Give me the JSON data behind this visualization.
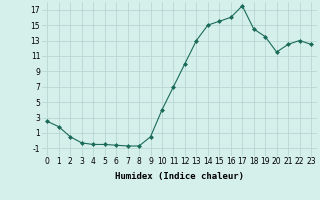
{
  "x": [
    0,
    1,
    2,
    3,
    4,
    5,
    6,
    7,
    8,
    9,
    10,
    11,
    12,
    13,
    14,
    15,
    16,
    17,
    18,
    19,
    20,
    21,
    22,
    23
  ],
  "y": [
    2.5,
    1.8,
    0.5,
    -0.3,
    -0.5,
    -0.5,
    -0.6,
    -0.7,
    -0.7,
    0.5,
    4.0,
    7.0,
    10.0,
    13.0,
    15.0,
    15.5,
    16.0,
    17.5,
    14.5,
    13.5,
    11.5,
    12.5,
    13.0,
    12.5
  ],
  "xlabel": "Humidex (Indice chaleur)",
  "xlim": [
    -0.5,
    23.5
  ],
  "ylim": [
    -2,
    18
  ],
  "yticks": [
    -1,
    1,
    3,
    5,
    7,
    9,
    11,
    13,
    15,
    17
  ],
  "line_color": "#1a6b5a",
  "marker": "D",
  "marker_size": 2,
  "bg_color": "#d5efeb",
  "grid_color": "#b8d8d2",
  "fig_bg": "#d5efeb",
  "xlabel_fontsize": 6.5,
  "tick_fontsize": 5.5
}
